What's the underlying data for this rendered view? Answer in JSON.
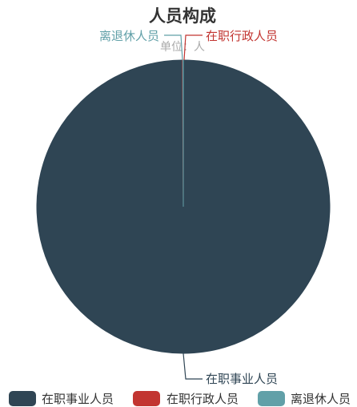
{
  "chart_data": {
    "type": "pie",
    "title": "人员构成",
    "subtitle": "单位：人",
    "slices": [
      {
        "name": "在职事业人员",
        "value": 99.9,
        "color": "#2f4554"
      },
      {
        "name": "在职行政人员",
        "value": 0.05,
        "color": "#c23531"
      },
      {
        "name": "离退休人员",
        "value": 0.05,
        "color": "#61a0a8"
      }
    ],
    "legend_position": "bottom"
  }
}
